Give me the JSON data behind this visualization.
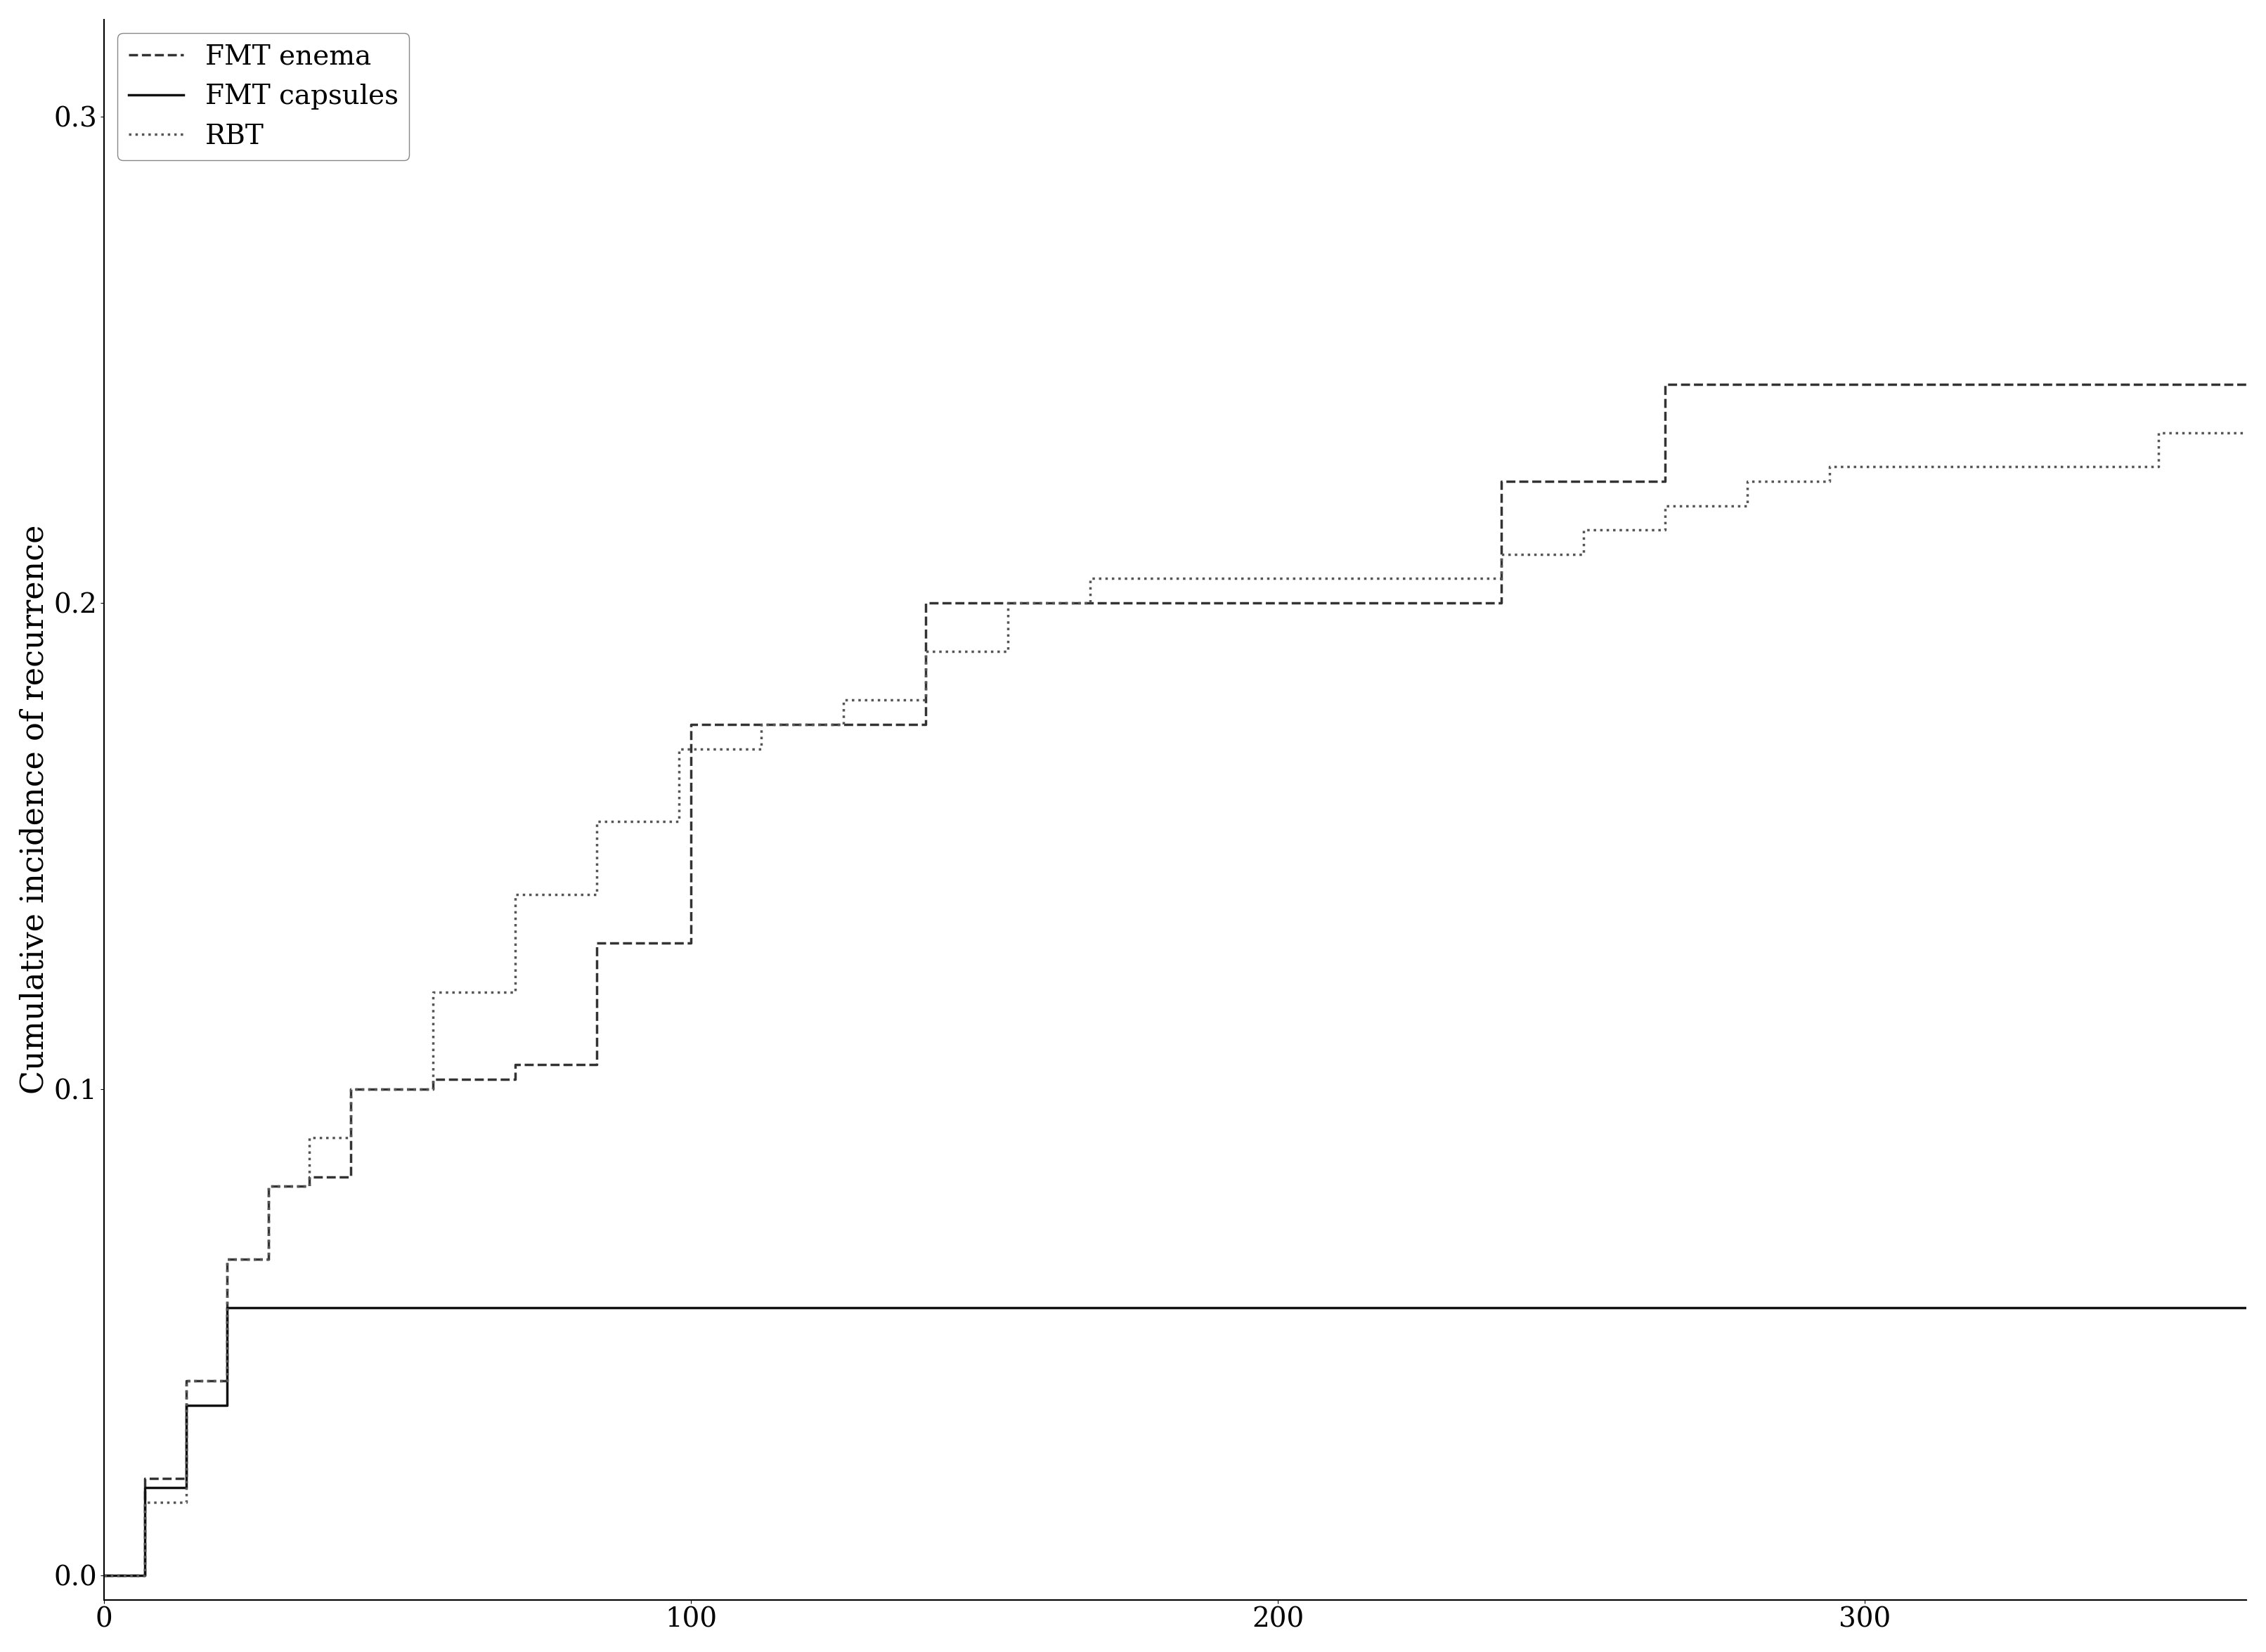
{
  "title": "",
  "ylabel": "Cumulative incidence of recurrence",
  "xlabel": "",
  "xlim": [
    0,
    365
  ],
  "ylim": [
    -0.005,
    0.32
  ],
  "yticks": [
    0.0,
    0.1,
    0.2,
    0.3
  ],
  "xticks": [
    0,
    100,
    200,
    300
  ],
  "background_color": "#ffffff",
  "legend_labels": [
    "FMT enema",
    "FMT capsules",
    "RBT"
  ],
  "fmt_enema_x": [
    0,
    7,
    14,
    21,
    28,
    35,
    42,
    56,
    70,
    84,
    100,
    112,
    140,
    182,
    238,
    266,
    280,
    350,
    365
  ],
  "fmt_enema_y": [
    0,
    0.02,
    0.04,
    0.065,
    0.08,
    0.082,
    0.1,
    0.102,
    0.105,
    0.13,
    0.175,
    0.175,
    0.2,
    0.2,
    0.225,
    0.245,
    0.245,
    0.245,
    0.245
  ],
  "fmt_capsules_x": [
    0,
    7,
    14,
    21,
    60,
    365
  ],
  "fmt_capsules_y": [
    0,
    0.018,
    0.035,
    0.055,
    0.055,
    0.055
  ],
  "rbt_x": [
    0,
    7,
    14,
    21,
    28,
    35,
    42,
    56,
    70,
    84,
    98,
    112,
    126,
    140,
    154,
    168,
    182,
    238,
    252,
    266,
    280,
    294,
    322,
    350,
    365
  ],
  "rbt_y": [
    0,
    0.015,
    0.04,
    0.065,
    0.08,
    0.09,
    0.1,
    0.12,
    0.14,
    0.155,
    0.17,
    0.175,
    0.18,
    0.19,
    0.2,
    0.205,
    0.205,
    0.21,
    0.215,
    0.22,
    0.225,
    0.228,
    0.228,
    0.235,
    0.235
  ],
  "fmt_enema_color": "#333333",
  "fmt_enema_linestyle": "dashed",
  "fmt_enema_linewidth": 2.5,
  "fmt_capsules_color": "#111111",
  "fmt_capsules_linestyle": "solid",
  "fmt_capsules_linewidth": 2.5,
  "rbt_color": "#555555",
  "rbt_linestyle": "dotted",
  "rbt_linewidth": 2.5,
  "legend_fontsize": 28,
  "axis_fontsize": 32,
  "tick_fontsize": 28,
  "ylabel_fontsize": 32
}
